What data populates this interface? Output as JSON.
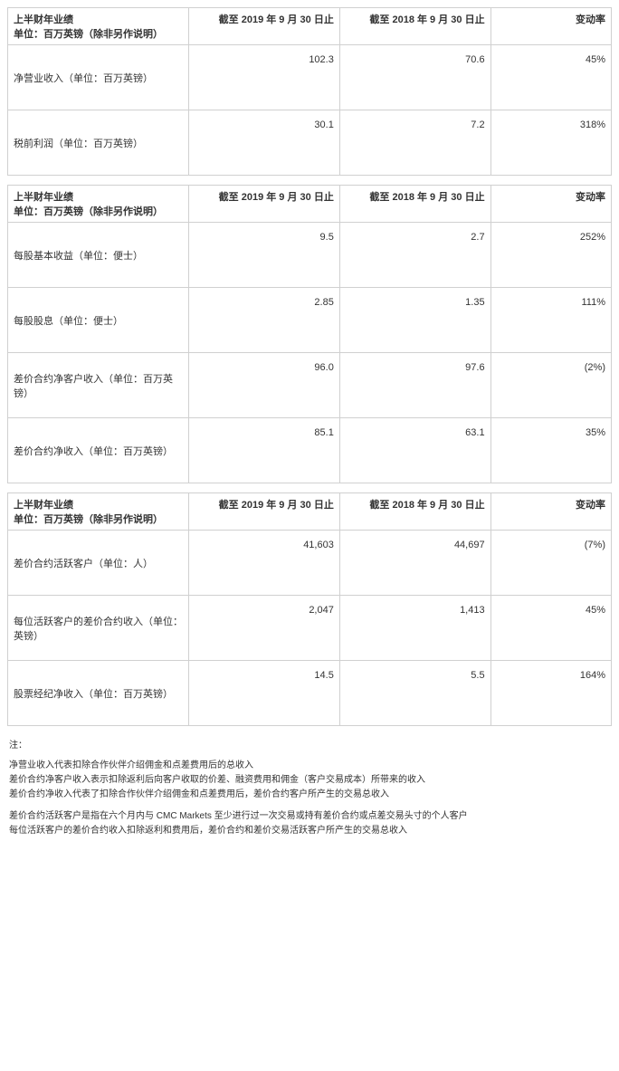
{
  "common_header": {
    "title_line1": "上半财年业绩",
    "title_line2": "单位：百万英镑（除非另作说明）",
    "col_2019": "截至 2019 年 9 月 30 日止",
    "col_2018": "截至 2018 年 9 月 30 日止",
    "col_change": "变动率"
  },
  "t1": {
    "r1": {
      "label": "净营业收入（单位：百万英镑）",
      "v2019": "102.3",
      "v2018": "70.6",
      "chg": "45%"
    },
    "r2": {
      "label": "税前利润（单位：百万英镑）",
      "v2019": "30.1",
      "v2018": "7.2",
      "chg": "318%"
    }
  },
  "t2": {
    "r1": {
      "label": "每股基本收益（单位：便士）",
      "v2019": "9.5",
      "v2018": "2.7",
      "chg": "252%"
    },
    "r2": {
      "label": "每股股息（单位：便士）",
      "v2019": "2.85",
      "v2018": "1.35",
      "chg": "111%"
    },
    "r3": {
      "label": "差价合约净客户收入（单位：百万英镑）",
      "v2019": "96.0",
      "v2018": "97.6",
      "chg": "(2%)"
    },
    "r4": {
      "label": "差价合约净收入（单位：百万英镑）",
      "v2019": "85.1",
      "v2018": "63.1",
      "chg": "35%"
    }
  },
  "t3": {
    "r1": {
      "label": "差价合约活跃客户（单位：人）",
      "v2019": "41,603",
      "v2018": "44,697",
      "chg": "(7%)"
    },
    "r2": {
      "label": "每位活跃客户的差价合约收入（单位：英镑）",
      "v2019": "2,047",
      "v2018": "1,413",
      "chg": "45%"
    },
    "r3": {
      "label": "股票经纪净收入（单位：百万英镑）",
      "v2019": "14.5",
      "v2018": "5.5",
      "chg": "164%"
    }
  },
  "notes": {
    "title": "注：",
    "b1l1": "净营业收入代表扣除合作伙伴介绍佣金和点差费用后的总收入",
    "b1l2": "差价合约净客户收入表示扣除返利后向客户收取的价差、融资费用和佣金（客户交易成本）所带来的收入",
    "b1l3": "差价合约净收入代表了扣除合作伙伴介绍佣金和点差费用后，差价合约客户所产生的交易总收入",
    "b2l1": "差价合约活跃客户是指在六个月内与 CMC Markets 至少进行过一次交易或持有差价合约或点差交易头寸的个人客户",
    "b2l2": "每位活跃客户的差价合约收入扣除返利和费用后，差价合约和差价交易活跃客户所产生的交易总收入"
  }
}
